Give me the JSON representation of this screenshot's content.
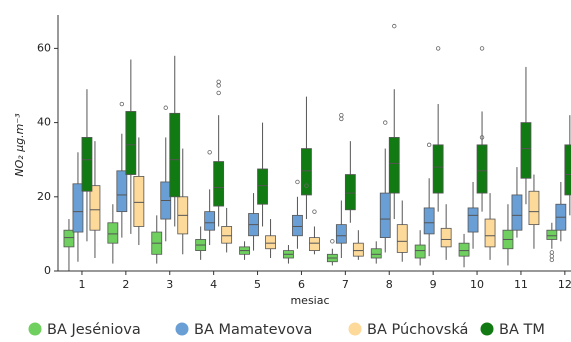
{
  "chart_data": {
    "type": "box",
    "x_label": "mesiac",
    "y_label": "NO₂  μg.m⁻³",
    "categories": [
      "1",
      "2",
      "3",
      "4",
      "5",
      "6",
      "7",
      "8",
      "9",
      "10",
      "11",
      "12"
    ],
    "ylim": [
      0,
      69
    ],
    "yticks": [
      0,
      20,
      40,
      60
    ],
    "legend": "bottom",
    "series": [
      {
        "name": "BA Jeséniova",
        "color": "#6fcf5f",
        "whislo": [
          0,
          2,
          2,
          3,
          3,
          2,
          1.5,
          2,
          1.5,
          1,
          1.5,
          6
        ],
        "q1": [
          6.5,
          7.5,
          4.5,
          5.5,
          4.5,
          3.5,
          2.5,
          3.5,
          3.5,
          4,
          6,
          8.5
        ],
        "median": [
          9,
          10,
          7.5,
          7,
          5.5,
          4.5,
          3.5,
          4.5,
          5.5,
          5.5,
          8.5,
          9.5
        ],
        "q3": [
          11,
          13,
          10.5,
          8.5,
          6.5,
          5.5,
          4.5,
          6,
          7,
          7.5,
          11,
          11
        ],
        "whishi": [
          14,
          18,
          15,
          12,
          8,
          7,
          6,
          8,
          11,
          10,
          18,
          13
        ],
        "fliers": [
          [],
          [],
          [],
          [],
          [],
          [],
          [
            8
          ],
          [],
          [],
          [],
          [],
          [
            3,
            4,
            5
          ]
        ]
      },
      {
        "name": "BA Mamatevova",
        "color": "#6a9fd6",
        "whislo": [
          2.5,
          9,
          8,
          7,
          5.5,
          6,
          3.5,
          5,
          4,
          6,
          9,
          8
        ],
        "q1": [
          10.5,
          16,
          14,
          11,
          9.5,
          9.5,
          7.5,
          9,
          10,
          10.5,
          11,
          11
        ],
        "median": [
          16,
          20.5,
          19,
          13,
          12.5,
          12,
          9.5,
          14,
          13,
          15,
          15,
          14.5
        ],
        "q3": [
          23.5,
          27,
          24,
          16,
          15.5,
          15,
          12.5,
          21,
          17,
          17,
          20.5,
          18
        ],
        "whishi": [
          32,
          37,
          36,
          22,
          21,
          20,
          19,
          33,
          25,
          24,
          28,
          24
        ],
        "fliers": [
          [],
          [
            45
          ],
          [
            44
          ],
          [
            32
          ],
          [],
          [
            24
          ],
          [
            41,
            42
          ],
          [
            40
          ],
          [
            34
          ],
          [],
          [],
          []
        ]
      },
      {
        "name": "BA Púchovská",
        "color": "#fdd99a",
        "whislo": [
          3.5,
          7,
          4.5,
          5,
          3.5,
          4.5,
          3,
          2.5,
          3,
          3,
          6,
          null
        ],
        "q1": [
          11,
          12,
          10,
          7.5,
          6,
          5.5,
          4,
          5,
          6.5,
          6.5,
          12.5,
          null
        ],
        "median": [
          16.5,
          18.5,
          15,
          9.5,
          7.5,
          7.5,
          5.5,
          8,
          8.5,
          9.5,
          16,
          null
        ],
        "q3": [
          23,
          25.5,
          20,
          12,
          9.5,
          9,
          7.5,
          12.5,
          11.5,
          14,
          21.5,
          null
        ],
        "whishi": [
          35,
          36,
          33,
          17,
          14,
          12,
          11,
          19,
          18,
          21,
          26,
          null
        ],
        "fliers": [
          [],
          [],
          [],
          [],
          [],
          [
            16
          ],
          [],
          [],
          [],
          [],
          [],
          []
        ]
      },
      {
        "name": "BA TM",
        "color": "#127a12",
        "whislo": [
          8,
          10,
          12,
          12,
          12,
          14,
          13,
          14,
          16,
          16,
          18,
          15
        ],
        "q1": [
          21.5,
          26,
          20,
          17.5,
          18,
          20.5,
          16.5,
          21,
          21,
          21,
          25,
          20.5
        ],
        "median": [
          30,
          34,
          30,
          22.5,
          23,
          27,
          21,
          29,
          28,
          27,
          33,
          26
        ],
        "q3": [
          36,
          43,
          42.5,
          29.5,
          27.5,
          33,
          26,
          36,
          34,
          34,
          40,
          34
        ],
        "whishi": [
          49,
          57,
          58,
          42,
          40,
          47,
          35,
          49,
          45,
          43,
          55,
          42
        ],
        "fliers": [
          [],
          [],
          [],
          [
            48,
            50,
            51
          ],
          [],
          [
            23
          ],
          [],
          [
            66
          ],
          [
            60
          ],
          [
            60,
            36
          ],
          [],
          []
        ]
      }
    ]
  }
}
